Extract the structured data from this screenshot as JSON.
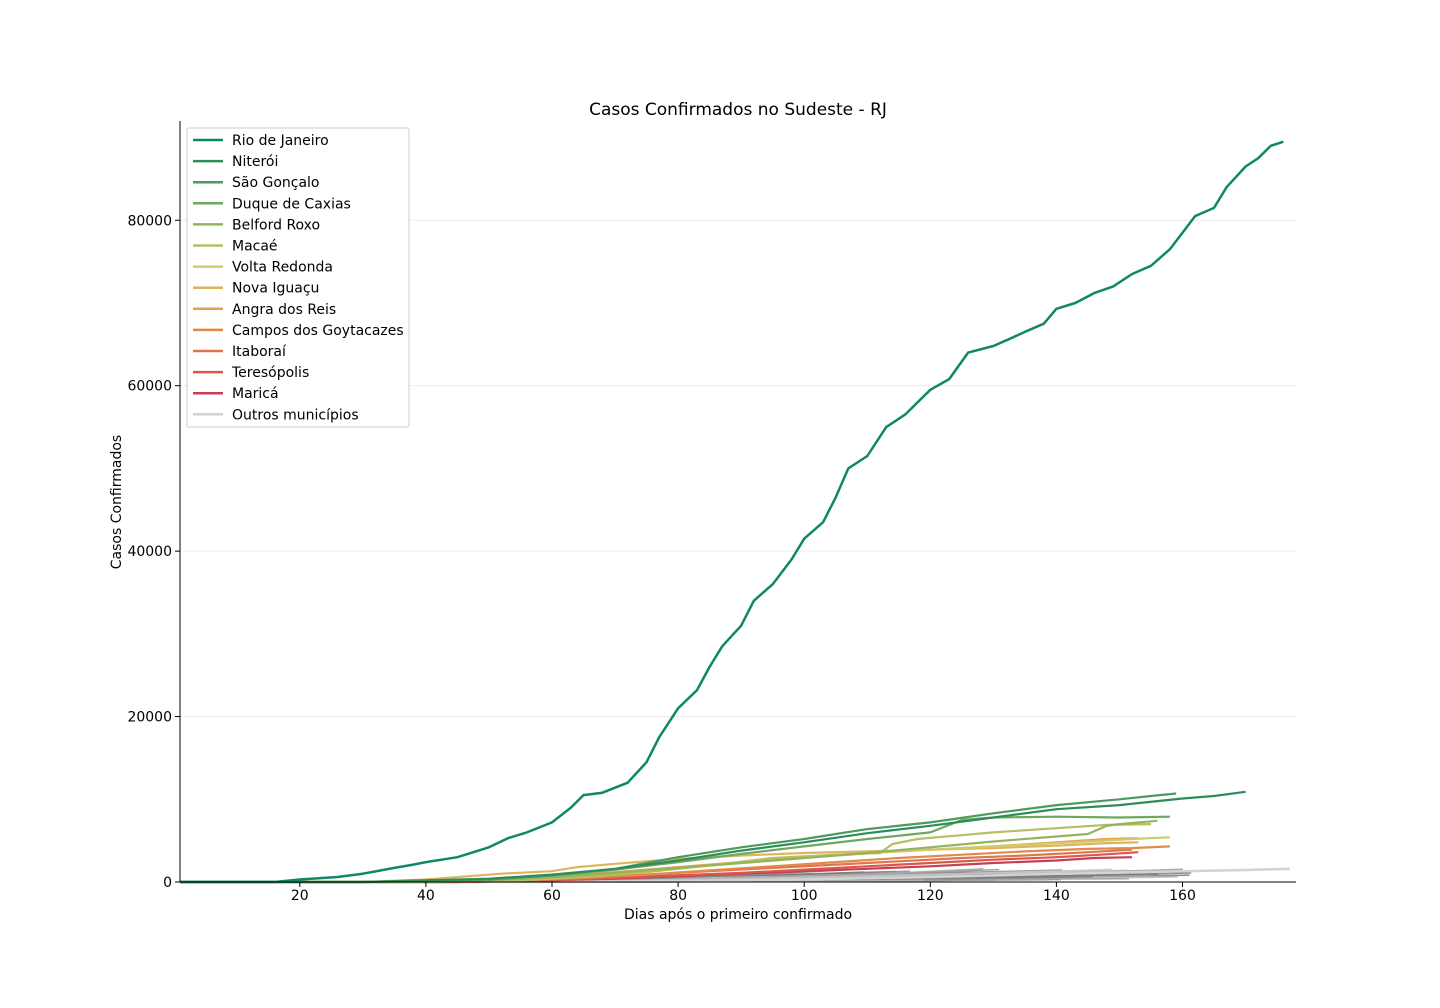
{
  "chart_data": {
    "type": "line",
    "title": "Casos Confirmados no Sudeste - RJ",
    "xlabel": "Dias após o primeiro confirmado",
    "ylabel": "Casos Confirmados",
    "xlim": [
      1,
      178
    ],
    "ylim": [
      0,
      92000
    ],
    "x_ticks": [
      20,
      40,
      60,
      80,
      100,
      120,
      140,
      160
    ],
    "y_ticks": [
      0,
      20000,
      40000,
      60000,
      80000
    ],
    "grid": "horizontal",
    "legend_position": "upper-left",
    "series": [
      {
        "name": "Rio de Janeiro",
        "color": "#11876a",
        "width": 2.5,
        "points": [
          [
            1,
            0
          ],
          [
            16,
            0
          ],
          [
            20,
            300
          ],
          [
            26,
            600
          ],
          [
            30,
            1000
          ],
          [
            35,
            1700
          ],
          [
            38,
            2100
          ],
          [
            40,
            2400
          ],
          [
            45,
            3000
          ],
          [
            50,
            4200
          ],
          [
            53,
            5300
          ],
          [
            56,
            6000
          ],
          [
            60,
            7200
          ],
          [
            63,
            9000
          ],
          [
            65,
            10500
          ],
          [
            68,
            10800
          ],
          [
            72,
            12000
          ],
          [
            75,
            14500
          ],
          [
            77,
            17500
          ],
          [
            80,
            21000
          ],
          [
            83,
            23200
          ],
          [
            85,
            26000
          ],
          [
            87,
            28500
          ],
          [
            90,
            31000
          ],
          [
            92,
            34000
          ],
          [
            95,
            36000
          ],
          [
            98,
            39000
          ],
          [
            100,
            41500
          ],
          [
            103,
            43500
          ],
          [
            105,
            46500
          ],
          [
            107,
            50000
          ],
          [
            110,
            51500
          ],
          [
            113,
            55000
          ],
          [
            116,
            56500
          ],
          [
            120,
            59500
          ],
          [
            123,
            60800
          ],
          [
            126,
            64000
          ],
          [
            130,
            64800
          ],
          [
            133,
            65800
          ],
          [
            135,
            66500
          ],
          [
            138,
            67500
          ],
          [
            140,
            69300
          ],
          [
            143,
            70000
          ],
          [
            146,
            71200
          ],
          [
            149,
            72000
          ],
          [
            152,
            73500
          ],
          [
            155,
            74500
          ],
          [
            158,
            76500
          ],
          [
            160,
            78500
          ],
          [
            162,
            80500
          ],
          [
            165,
            81500
          ],
          [
            167,
            84000
          ],
          [
            170,
            86500
          ],
          [
            172,
            87500
          ],
          [
            174,
            89000
          ],
          [
            176,
            89500
          ]
        ]
      },
      {
        "name": "Niterói",
        "color": "#2e8b5a",
        "width": 2.2,
        "points": [
          [
            1,
            0
          ],
          [
            30,
            0
          ],
          [
            50,
            400
          ],
          [
            60,
            900
          ],
          [
            70,
            1600
          ],
          [
            80,
            2600
          ],
          [
            90,
            3800
          ],
          [
            100,
            4800
          ],
          [
            110,
            5900
          ],
          [
            120,
            6800
          ],
          [
            130,
            7800
          ],
          [
            140,
            8800
          ],
          [
            150,
            9300
          ],
          [
            160,
            10100
          ],
          [
            165,
            10400
          ],
          [
            170,
            10900
          ]
        ]
      },
      {
        "name": "São Gonçalo",
        "color": "#4d9a5e",
        "width": 2.2,
        "points": [
          [
            1,
            0
          ],
          [
            30,
            0
          ],
          [
            50,
            300
          ],
          [
            60,
            800
          ],
          [
            70,
            1600
          ],
          [
            80,
            3000
          ],
          [
            90,
            4200
          ],
          [
            100,
            5200
          ],
          [
            110,
            6400
          ],
          [
            120,
            7200
          ],
          [
            130,
            8300
          ],
          [
            140,
            9300
          ],
          [
            150,
            10000
          ],
          [
            155,
            10400
          ],
          [
            159,
            10700
          ]
        ]
      },
      {
        "name": "Duque de Caxias",
        "color": "#6ea85e",
        "width": 2.2,
        "points": [
          [
            1,
            0
          ],
          [
            30,
            0
          ],
          [
            50,
            300
          ],
          [
            60,
            800
          ],
          [
            70,
            1500
          ],
          [
            80,
            2400
          ],
          [
            90,
            3400
          ],
          [
            100,
            4300
          ],
          [
            110,
            5200
          ],
          [
            120,
            6000
          ],
          [
            125,
            7500
          ],
          [
            130,
            7800
          ],
          [
            140,
            7900
          ],
          [
            150,
            7800
          ],
          [
            158,
            7900
          ]
        ]
      },
      {
        "name": "Belford Roxo",
        "color": "#93b45c",
        "width": 2.2,
        "points": [
          [
            1,
            0
          ],
          [
            35,
            0
          ],
          [
            50,
            200
          ],
          [
            60,
            600
          ],
          [
            70,
            1100
          ],
          [
            80,
            1700
          ],
          [
            90,
            2300
          ],
          [
            100,
            2900
          ],
          [
            110,
            3500
          ],
          [
            120,
            4200
          ],
          [
            130,
            4900
          ],
          [
            140,
            5500
          ],
          [
            145,
            5800
          ],
          [
            148,
            6800
          ],
          [
            150,
            7000
          ],
          [
            156,
            7400
          ]
        ]
      },
      {
        "name": "Macaé",
        "color": "#b5c064",
        "width": 2.2,
        "points": [
          [
            1,
            0
          ],
          [
            40,
            0
          ],
          [
            55,
            200
          ],
          [
            65,
            600
          ],
          [
            75,
            1200
          ],
          [
            85,
            2000
          ],
          [
            95,
            2900
          ],
          [
            105,
            3300
          ],
          [
            112,
            3500
          ],
          [
            114,
            4600
          ],
          [
            118,
            5200
          ],
          [
            124,
            5600
          ],
          [
            130,
            6000
          ],
          [
            140,
            6500
          ],
          [
            148,
            6900
          ],
          [
            155,
            7000
          ]
        ]
      },
      {
        "name": "Volta Redonda",
        "color": "#d1c96a",
        "width": 2.2,
        "points": [
          [
            1,
            0
          ],
          [
            40,
            0
          ],
          [
            55,
            300
          ],
          [
            65,
            800
          ],
          [
            75,
            1400
          ],
          [
            85,
            2000
          ],
          [
            95,
            2600
          ],
          [
            105,
            3200
          ],
          [
            115,
            3700
          ],
          [
            125,
            4100
          ],
          [
            135,
            4500
          ],
          [
            145,
            4900
          ],
          [
            152,
            5200
          ],
          [
            158,
            5400
          ]
        ]
      },
      {
        "name": "Nova Iguaçu",
        "color": "#dfb45e",
        "width": 2.2,
        "points": [
          [
            1,
            0
          ],
          [
            30,
            0
          ],
          [
            40,
            300
          ],
          [
            52,
            1000
          ],
          [
            60,
            1300
          ],
          [
            64,
            1800
          ],
          [
            70,
            2200
          ],
          [
            80,
            2800
          ],
          [
            90,
            3200
          ],
          [
            100,
            3500
          ],
          [
            110,
            3700
          ],
          [
            120,
            3900
          ],
          [
            130,
            4100
          ],
          [
            140,
            4400
          ],
          [
            148,
            4700
          ],
          [
            153,
            4800
          ]
        ]
      },
      {
        "name": "Angra dos Reis",
        "color": "#e3a04f",
        "width": 2.2,
        "points": [
          [
            1,
            0
          ],
          [
            40,
            0
          ],
          [
            50,
            300
          ],
          [
            60,
            700
          ],
          [
            70,
            1200
          ],
          [
            80,
            1800
          ],
          [
            90,
            2400
          ],
          [
            100,
            3000
          ],
          [
            110,
            3500
          ],
          [
            120,
            3900
          ],
          [
            130,
            4300
          ],
          [
            140,
            4800
          ],
          [
            148,
            5200
          ],
          [
            153,
            5300
          ]
        ]
      },
      {
        "name": "Campos dos Goytacazes",
        "color": "#e28a4a",
        "width": 2.2,
        "points": [
          [
            1,
            0
          ],
          [
            40,
            0
          ],
          [
            55,
            200
          ],
          [
            65,
            500
          ],
          [
            75,
            900
          ],
          [
            85,
            1400
          ],
          [
            95,
            1900
          ],
          [
            105,
            2400
          ],
          [
            115,
            2900
          ],
          [
            125,
            3300
          ],
          [
            135,
            3700
          ],
          [
            145,
            4000
          ],
          [
            152,
            4100
          ],
          [
            158,
            4300
          ]
        ]
      },
      {
        "name": "Itaboraí",
        "color": "#df7450",
        "width": 2.2,
        "points": [
          [
            1,
            0
          ],
          [
            45,
            0
          ],
          [
            55,
            200
          ],
          [
            65,
            500
          ],
          [
            75,
            900
          ],
          [
            85,
            1300
          ],
          [
            95,
            1700
          ],
          [
            105,
            2100
          ],
          [
            115,
            2500
          ],
          [
            125,
            2900
          ],
          [
            135,
            3200
          ],
          [
            145,
            3600
          ],
          [
            152,
            3900
          ]
        ]
      },
      {
        "name": "Teresópolis",
        "color": "#d9584a",
        "width": 2.2,
        "points": [
          [
            1,
            0
          ],
          [
            45,
            0
          ],
          [
            60,
            200
          ],
          [
            70,
            500
          ],
          [
            80,
            800
          ],
          [
            90,
            1100
          ],
          [
            100,
            1500
          ],
          [
            110,
            1900
          ],
          [
            120,
            2300
          ],
          [
            130,
            2700
          ],
          [
            140,
            3000
          ],
          [
            147,
            3300
          ],
          [
            153,
            3600
          ]
        ]
      },
      {
        "name": "Maricá",
        "color": "#c73e55",
        "width": 2.2,
        "points": [
          [
            1,
            0
          ],
          [
            45,
            0
          ],
          [
            60,
            200
          ],
          [
            70,
            400
          ],
          [
            80,
            700
          ],
          [
            90,
            1000
          ],
          [
            100,
            1300
          ],
          [
            110,
            1600
          ],
          [
            120,
            1900
          ],
          [
            130,
            2300
          ],
          [
            140,
            2600
          ],
          [
            146,
            2900
          ],
          [
            152,
            3000
          ]
        ]
      },
      {
        "name": "Outros municípios",
        "color": "#d3d3d3",
        "width": 2.5,
        "points": [
          [
            1,
            0
          ],
          [
            60,
            0
          ],
          [
            80,
            100
          ],
          [
            100,
            300
          ],
          [
            120,
            600
          ],
          [
            140,
            1000
          ],
          [
            160,
            1300
          ],
          [
            170,
            1450
          ],
          [
            177,
            1600
          ]
        ]
      }
    ]
  }
}
